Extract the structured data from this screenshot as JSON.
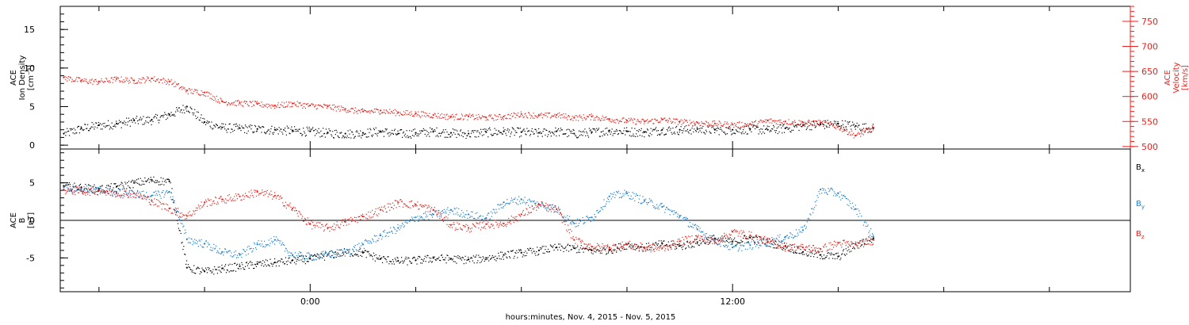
{
  "chart_data": [
    {
      "type": "scatter",
      "panel": "top",
      "xlabel": "hours:minutes, Nov.  4, 2015 - Nov.  5, 2015",
      "x_ticks": [
        {
          "t": 0,
          "label": "0:00"
        },
        {
          "t": 12,
          "label": "12:00"
        }
      ],
      "xlim": [
        -7.1,
        23.3
      ],
      "left_axis": {
        "label_lines": [
          "ACE",
          "Ion Density",
          "[cm⁻³]"
        ],
        "ylim": [
          -0.5,
          18
        ],
        "ticks": [
          0,
          5,
          10,
          15
        ],
        "color": "#000000"
      },
      "right_axis": {
        "label_lines": [
          "ACE",
          "Velocity",
          "[km/s]"
        ],
        "ylim": [
          495,
          780
        ],
        "ticks": [
          500,
          550,
          600,
          650,
          700,
          750
        ],
        "color": "#e8231e"
      },
      "series": [
        {
          "axis": "left",
          "color": "#000000",
          "x": [
            -7.0,
            -6.5,
            -6.0,
            -5.5,
            -5.0,
            -4.5,
            -4.0,
            -3.5,
            -3.0,
            -2.5,
            -2.0,
            -1.5,
            -1.0,
            -0.5,
            0.0,
            0.5,
            1.0,
            1.5,
            2.0,
            2.5,
            3.0,
            3.5,
            4.0,
            4.5,
            5.0,
            5.5,
            6.0,
            6.5,
            7.0,
            7.5,
            8.0,
            8.5,
            9.0,
            9.5,
            10.0,
            10.5,
            11.0,
            11.5,
            12.0,
            12.5,
            13.0,
            13.5,
            14.0,
            14.5,
            15.0,
            15.5,
            16.0
          ],
          "y": [
            1.5,
            2.2,
            2.6,
            2.8,
            3.2,
            3.3,
            4.0,
            5.0,
            3.0,
            2.3,
            2.2,
            2.1,
            2.0,
            1.9,
            1.8,
            1.6,
            1.5,
            1.6,
            1.8,
            1.5,
            1.6,
            1.8,
            1.6,
            1.5,
            1.7,
            1.8,
            1.7,
            1.6,
            1.8,
            1.5,
            1.7,
            1.9,
            1.8,
            1.7,
            2.0,
            2.0,
            2.1,
            2.0,
            2.0,
            2.1,
            2.0,
            2.2,
            2.6,
            2.7,
            2.8,
            2.5,
            2.2
          ]
        },
        {
          "axis": "right",
          "color": "#e8231e",
          "x": [
            -7.0,
            -6.5,
            -6.0,
            -5.5,
            -5.0,
            -4.5,
            -4.0,
            -3.5,
            -3.0,
            -2.5,
            -2.0,
            -1.5,
            -1.0,
            -0.5,
            0.0,
            0.5,
            1.0,
            1.5,
            2.0,
            2.5,
            3.0,
            3.5,
            4.0,
            4.5,
            5.0,
            5.5,
            6.0,
            6.5,
            7.0,
            7.5,
            8.0,
            8.5,
            9.0,
            9.5,
            10.0,
            10.5,
            11.0,
            11.5,
            12.0,
            12.5,
            13.0,
            13.5,
            14.0,
            14.5,
            15.0,
            15.5,
            16.0
          ],
          "y": [
            638,
            632,
            630,
            635,
            632,
            636,
            630,
            612,
            608,
            590,
            587,
            585,
            582,
            586,
            582,
            580,
            575,
            570,
            572,
            568,
            566,
            563,
            560,
            560,
            558,
            560,
            565,
            562,
            563,
            558,
            560,
            555,
            552,
            550,
            554,
            550,
            548,
            546,
            544,
            545,
            552,
            550,
            548,
            548,
            540,
            522,
            538
          ]
        }
      ]
    },
    {
      "type": "scatter",
      "panel": "bottom",
      "xlabel": "hours:minutes, Nov.  4, 2015 - Nov.  5, 2015",
      "xlim": [
        -7.1,
        23.3
      ],
      "left_axis": {
        "label_lines": [
          "ACE",
          "B",
          "[nT]"
        ],
        "ylim": [
          -9.5,
          9.5
        ],
        "ticks": [
          -5,
          0,
          5
        ],
        "color": "#000000"
      },
      "zero_line": 0,
      "legend_placement": "right",
      "series": [
        {
          "name": "Bx",
          "legend_main": "B",
          "legend_sub": "x",
          "color": "#000000",
          "x": [
            -7.0,
            -6.5,
            -6.0,
            -5.5,
            -5.0,
            -4.5,
            -4.0,
            -3.5,
            -3.0,
            -2.5,
            -2.0,
            -1.5,
            -1.0,
            -0.5,
            0.0,
            0.5,
            1.0,
            1.5,
            2.0,
            2.5,
            3.0,
            3.5,
            4.0,
            4.5,
            5.0,
            5.5,
            6.0,
            6.5,
            7.0,
            7.5,
            8.0,
            8.5,
            9.0,
            9.5,
            10.0,
            10.5,
            11.0,
            11.5,
            12.0,
            12.5,
            13.0,
            13.5,
            14.0,
            14.5,
            15.0,
            15.5,
            16.0
          ],
          "y": [
            4.6,
            4.4,
            4.2,
            4.5,
            5.0,
            5.4,
            5.2,
            -6.3,
            -6.8,
            -6.4,
            -6.1,
            -5.8,
            -5.6,
            -5.3,
            -5.1,
            -4.6,
            -4.2,
            -4.3,
            -5.1,
            -5.4,
            -5.3,
            -5.0,
            -5.1,
            -5.2,
            -5.0,
            -4.6,
            -4.3,
            -4.0,
            -3.6,
            -3.7,
            -4.0,
            -3.9,
            -3.2,
            -3.6,
            -3.1,
            -3.4,
            -2.9,
            -2.4,
            -2.8,
            -2.3,
            -2.9,
            -3.4,
            -4.2,
            -4.6,
            -4.8,
            -3.2,
            -2.4
          ]
        },
        {
          "name": "By",
          "legend_main": "B",
          "legend_sub": "y",
          "color": "#1f7fd0",
          "x": [
            -7.0,
            -6.5,
            -6.0,
            -5.5,
            -5.0,
            -4.5,
            -4.0,
            -3.5,
            -3.0,
            -2.5,
            -2.0,
            -1.5,
            -1.0,
            -0.5,
            0.0,
            0.5,
            1.0,
            1.5,
            2.0,
            2.5,
            3.0,
            3.5,
            4.0,
            4.5,
            5.0,
            5.5,
            6.0,
            6.5,
            7.0,
            7.5,
            8.0,
            8.5,
            9.0,
            9.5,
            10.0,
            10.5,
            11.0,
            11.5,
            12.0,
            12.5,
            13.0,
            13.5,
            14.0,
            14.5,
            15.0,
            15.5,
            16.0
          ],
          "y": [
            4.4,
            4.2,
            4.0,
            3.8,
            3.6,
            3.3,
            3.8,
            -2.5,
            -3.1,
            -4.2,
            -4.6,
            -3.2,
            -2.6,
            -4.6,
            -4.8,
            -4.5,
            -4.2,
            -3.2,
            -2.0,
            -1.0,
            0.4,
            0.8,
            1.4,
            0.8,
            0.3,
            2.4,
            2.8,
            2.1,
            1.5,
            -0.4,
            0.4,
            3.2,
            3.6,
            2.6,
            1.8,
            0.6,
            -1.2,
            -2.6,
            -3.6,
            -3.3,
            -2.8,
            -2.2,
            -1.3,
            4.1,
            3.6,
            1.5,
            -2.2
          ]
        },
        {
          "name": "Bz",
          "legend_main": "B",
          "legend_sub": "z",
          "color": "#e8231e",
          "x": [
            -7.0,
            -6.5,
            -6.0,
            -5.5,
            -5.0,
            -4.5,
            -4.0,
            -3.5,
            -3.0,
            -2.5,
            -2.0,
            -1.5,
            -1.0,
            -0.5,
            0.0,
            0.5,
            1.0,
            1.5,
            2.0,
            2.5,
            3.0,
            3.5,
            4.0,
            4.5,
            5.0,
            5.5,
            6.0,
            6.5,
            7.0,
            7.5,
            8.0,
            8.5,
            9.0,
            9.5,
            10.0,
            10.5,
            11.0,
            11.5,
            12.0,
            12.5,
            13.0,
            13.5,
            14.0,
            14.5,
            15.0,
            15.5,
            16.0
          ],
          "y": [
            4.1,
            3.9,
            4.0,
            3.6,
            3.6,
            2.6,
            1.6,
            0.6,
            2.4,
            2.8,
            3.2,
            3.8,
            3.3,
            1.6,
            -0.5,
            -1.0,
            -0.2,
            0.5,
            1.4,
            2.4,
            2.1,
            1.4,
            -0.6,
            -1.0,
            -0.5,
            -0.4,
            0.8,
            2.1,
            1.5,
            -2.6,
            -3.5,
            -3.6,
            -3.2,
            -3.6,
            -3.7,
            -2.8,
            -2.2,
            -2.9,
            -1.5,
            -2.0,
            -2.8,
            -3.5,
            -3.6,
            -3.8,
            -3.0,
            -3.2,
            -2.6
          ]
        }
      ]
    }
  ]
}
